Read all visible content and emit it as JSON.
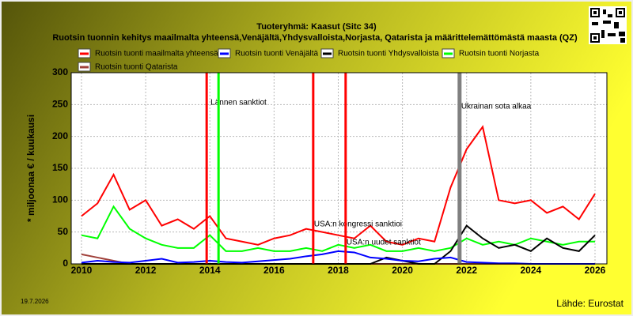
{
  "chart_data": {
    "type": "line",
    "title": "Tuoteryhmä: Kaasut (Sitc 34)",
    "subtitle": "Ruotsin tuonnin kehitys maailmalta yhteensä,Venäjältä,Yhdysvalloista,Norjasta, Qatarista ja määrittelemättömästä maasta (QZ)",
    "y_label": "* miljoonaa € / kuukausi",
    "date": "19.7.2026",
    "source": "Lähde: Eurostat",
    "x": [
      2010,
      2010.5,
      2011,
      2011.5,
      2012,
      2012.5,
      2013,
      2013.5,
      2014,
      2014.5,
      2015,
      2015.5,
      2016,
      2016.5,
      2017,
      2017.5,
      2018,
      2018.5,
      2019,
      2019.5,
      2020,
      2020.5,
      2021,
      2021.5,
      2022,
      2022.5,
      2023,
      2023.5,
      2024,
      2024.5,
      2025,
      2025.5,
      2026
    ],
    "series": [
      {
        "name": "Ruotsin tuonti maailmalta yhteensä",
        "color": "#ff0000",
        "values": [
          75,
          95,
          140,
          85,
          100,
          60,
          70,
          55,
          75,
          40,
          35,
          30,
          40,
          45,
          55,
          50,
          45,
          40,
          60,
          35,
          30,
          40,
          35,
          120,
          180,
          215,
          100,
          95,
          100,
          80,
          90,
          70,
          110
        ]
      },
      {
        "name": "Ruotsin tuonti Venäjältä",
        "color": "#0000ff",
        "values": [
          2,
          5,
          3,
          2,
          5,
          8,
          2,
          3,
          5,
          3,
          2,
          4,
          6,
          8,
          12,
          15,
          20,
          18,
          10,
          8,
          5,
          4,
          8,
          10,
          3,
          2,
          1,
          1,
          0,
          0,
          0,
          0,
          0
        ]
      },
      {
        "name": "Ruotsin tuonti Yhdysvalloista",
        "color": "#000000",
        "values": [
          0,
          0,
          0,
          0,
          0,
          0,
          0,
          0,
          0,
          0,
          0,
          0,
          0,
          0,
          0,
          0,
          0,
          0,
          0,
          10,
          5,
          0,
          0,
          20,
          60,
          40,
          25,
          30,
          20,
          40,
          25,
          20,
          45
        ]
      },
      {
        "name": "Ruotsin tuonti Norjasta",
        "color": "#00ff00",
        "values": [
          45,
          40,
          90,
          55,
          40,
          30,
          25,
          25,
          45,
          20,
          20,
          25,
          20,
          20,
          25,
          20,
          30,
          25,
          30,
          20,
          20,
          25,
          20,
          25,
          40,
          30,
          35,
          30,
          40,
          35,
          30,
          35,
          35
        ]
      },
      {
        "name": "Ruotsin tuonti Qatarista",
        "color": "#a0403a",
        "values": [
          15,
          10,
          5,
          0,
          0,
          0,
          0,
          0,
          0,
          0,
          0,
          0,
          0,
          0,
          0,
          0,
          0,
          0,
          0,
          0,
          0,
          0,
          0,
          0,
          0,
          0,
          0,
          0,
          0,
          0,
          0,
          0,
          0
        ]
      }
    ],
    "events": [
      {
        "x": 2013.9,
        "color": "#ff0000",
        "label": "Lännen sanktiot"
      },
      {
        "x": 2014.27,
        "color": "#00ff00"
      },
      {
        "x": 2017.22,
        "color": "#ff0000",
        "label": "USA:n kongressi sanktioi"
      },
      {
        "x": 2018.23,
        "color": "#ff0000",
        "label": "USA:n uudet sanktiot"
      },
      {
        "x": 2021.78,
        "color": "#808080",
        "label": "Ukrainan sota alkaa"
      }
    ],
    "xlim": [
      2009.68,
      2026.37
    ],
    "xticks": [
      2010,
      2012,
      2014,
      2016,
      2018,
      2020,
      2022,
      2024,
      2026
    ],
    "ylim": [
      0,
      300
    ],
    "yticks": [
      0,
      50,
      100,
      150,
      200,
      250,
      300
    ],
    "grid": true
  }
}
